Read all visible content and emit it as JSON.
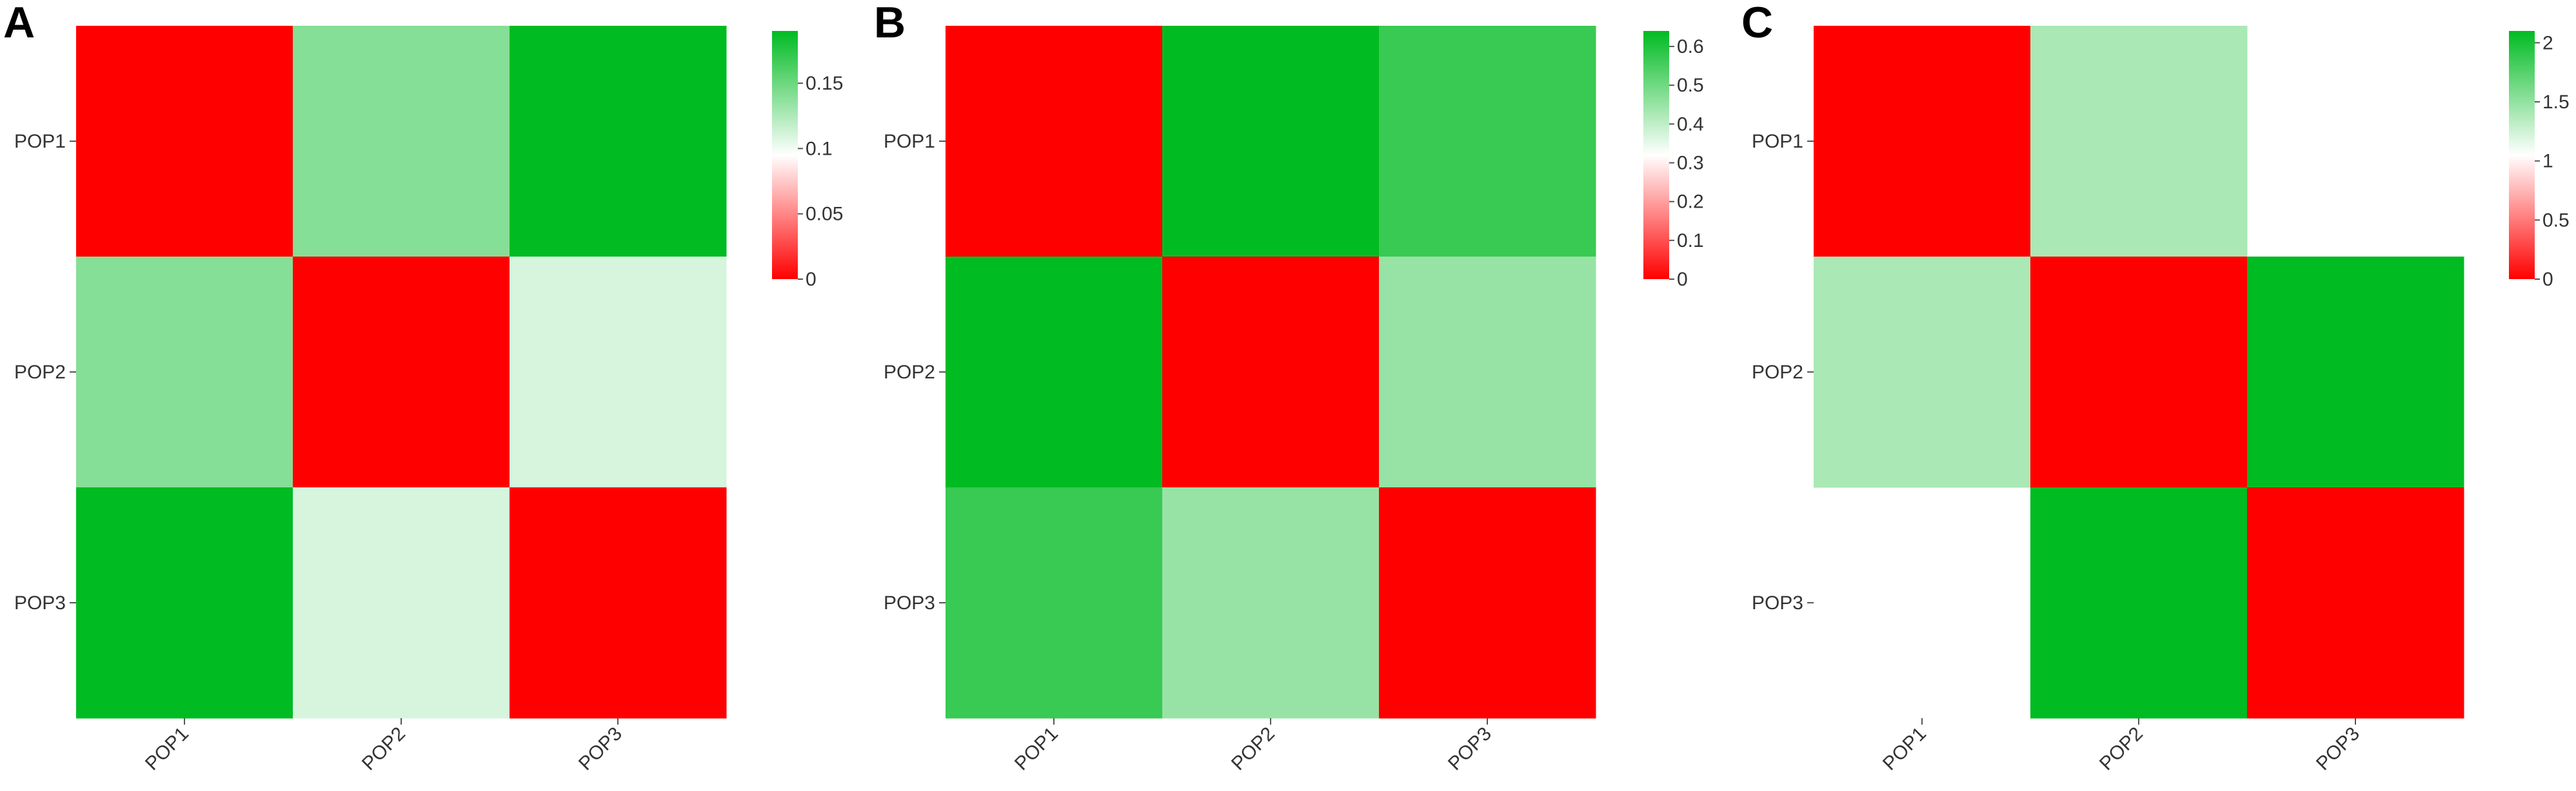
{
  "colors": {
    "low": "#ff0000",
    "mid": "#ffffff",
    "high": "#00bb22"
  },
  "chart_data": [
    {
      "type": "heatmap",
      "panel_label": "A",
      "rows": [
        "POP1",
        "POP2",
        "POP3"
      ],
      "columns": [
        "POP1",
        "POP2",
        "POP3"
      ],
      "values": [
        [
          0,
          0.14,
          0.19
        ],
        [
          0.14,
          0,
          0.11
        ],
        [
          0.19,
          0.11,
          0
        ]
      ],
      "color_range": [
        0,
        0.19
      ],
      "colorbar_ticks": [
        {
          "value": 0,
          "label": "0"
        },
        {
          "value": 0.05,
          "label": "0.05"
        },
        {
          "value": 0.1,
          "label": "0.1"
        },
        {
          "value": 0.15,
          "label": "0.15"
        }
      ]
    },
    {
      "type": "heatmap",
      "panel_label": "B",
      "rows": [
        "POP1",
        "POP2",
        "POP3"
      ],
      "columns": [
        "POP1",
        "POP2",
        "POP3"
      ],
      "values": [
        [
          0,
          0.64,
          0.57
        ],
        [
          0.64,
          0,
          0.45
        ],
        [
          0.57,
          0.45,
          0
        ]
      ],
      "color_range": [
        0,
        0.64
      ],
      "colorbar_ticks": [
        {
          "value": 0,
          "label": "0"
        },
        {
          "value": 0.1,
          "label": "0.1"
        },
        {
          "value": 0.2,
          "label": "0.2"
        },
        {
          "value": 0.3,
          "label": "0.3"
        },
        {
          "value": 0.4,
          "label": "0.4"
        },
        {
          "value": 0.5,
          "label": "0.5"
        },
        {
          "value": 0.6,
          "label": "0.6"
        }
      ]
    },
    {
      "type": "heatmap",
      "panel_label": "C",
      "rows": [
        "POP1",
        "POP2",
        "POP3"
      ],
      "columns": [
        "POP1",
        "POP2",
        "POP3"
      ],
      "values": [
        [
          0,
          1.4,
          null
        ],
        [
          1.4,
          0,
          2.1
        ],
        [
          null,
          2.1,
          0
        ]
      ],
      "color_range": [
        0,
        2.1
      ],
      "colorbar_ticks": [
        {
          "value": 0,
          "label": "0"
        },
        {
          "value": 0.5,
          "label": "0.5"
        },
        {
          "value": 1,
          "label": "1"
        },
        {
          "value": 1.5,
          "label": "1.5"
        },
        {
          "value": 2,
          "label": "2"
        }
      ]
    }
  ]
}
